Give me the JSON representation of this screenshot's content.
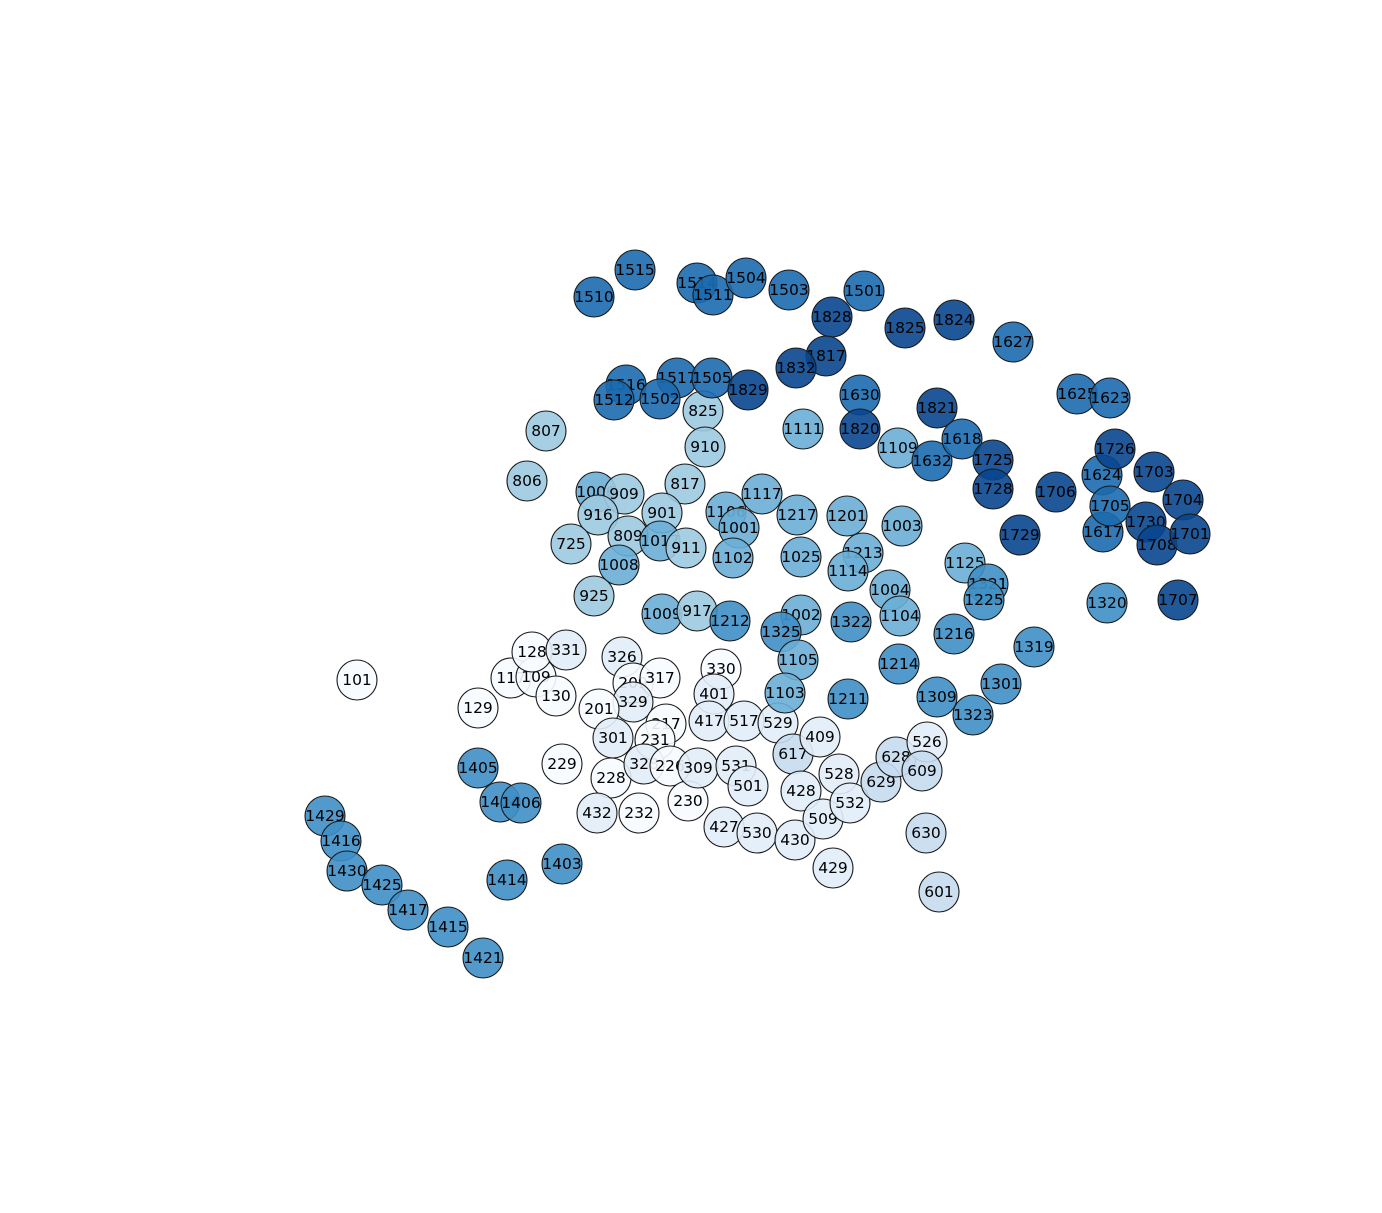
{
  "palette": [
    "#f7fbff",
    "#e1edf8",
    "#c6dcef",
    "#9dcae1",
    "#6aaed6",
    "#3f8fc5",
    "#1c6aaf",
    "#08468f"
  ],
  "nodes": [
    {
      "label": "101",
      "shade": 0
    },
    {
      "label": "117",
      "shade": 0
    },
    {
      "label": "109",
      "shade": 0
    },
    {
      "label": "128",
      "shade": 0
    },
    {
      "label": "129",
      "shade": 0
    },
    {
      "label": "130",
      "shade": 0
    },
    {
      "label": "331",
      "shade": 1
    },
    {
      "label": "326",
      "shade": 1
    },
    {
      "label": "209",
      "shade": 0
    },
    {
      "label": "317",
      "shade": 0
    },
    {
      "label": "329",
      "shade": 1
    },
    {
      "label": "201",
      "shade": 0
    },
    {
      "label": "301",
      "shade": 1
    },
    {
      "label": "217",
      "shade": 0
    },
    {
      "label": "231",
      "shade": 0
    },
    {
      "label": "229",
      "shade": 0
    },
    {
      "label": "228",
      "shade": 0
    },
    {
      "label": "328",
      "shade": 1
    },
    {
      "label": "226",
      "shade": 0
    },
    {
      "label": "232",
      "shade": 0
    },
    {
      "label": "230",
      "shade": 0
    },
    {
      "label": "432",
      "shade": 1
    },
    {
      "label": "330",
      "shade": 0
    },
    {
      "label": "401",
      "shade": 1
    },
    {
      "label": "417",
      "shade": 1
    },
    {
      "label": "517",
      "shade": 1
    },
    {
      "label": "309",
      "shade": 1
    },
    {
      "label": "531",
      "shade": 1
    },
    {
      "label": "501",
      "shade": 1
    },
    {
      "label": "427",
      "shade": 1
    },
    {
      "label": "530",
      "shade": 1
    },
    {
      "label": "430",
      "shade": 1
    },
    {
      "label": "529",
      "shade": 1
    },
    {
      "label": "617",
      "shade": 2
    },
    {
      "label": "409",
      "shade": 1
    },
    {
      "label": "428",
      "shade": 1
    },
    {
      "label": "509",
      "shade": 1
    },
    {
      "label": "528",
      "shade": 1
    },
    {
      "label": "532",
      "shade": 1
    },
    {
      "label": "429",
      "shade": 1
    },
    {
      "label": "629",
      "shade": 2
    },
    {
      "label": "628",
      "shade": 2
    },
    {
      "label": "526",
      "shade": 1
    },
    {
      "label": "609",
      "shade": 2
    },
    {
      "label": "630",
      "shade": 2
    },
    {
      "label": "601",
      "shade": 2
    },
    {
      "label": "807",
      "shade": 3
    },
    {
      "label": "806",
      "shade": 3
    },
    {
      "label": "825",
      "shade": 3
    },
    {
      "label": "910",
      "shade": 3
    },
    {
      "label": "817",
      "shade": 3
    },
    {
      "label": "1006",
      "shade": 4
    },
    {
      "label": "909",
      "shade": 3
    },
    {
      "label": "916",
      "shade": 3
    },
    {
      "label": "901",
      "shade": 3
    },
    {
      "label": "809",
      "shade": 3
    },
    {
      "label": "1017",
      "shade": 4
    },
    {
      "label": "911",
      "shade": 3
    },
    {
      "label": "725",
      "shade": 3
    },
    {
      "label": "1008",
      "shade": 4
    },
    {
      "label": "925",
      "shade": 3
    },
    {
      "label": "1009",
      "shade": 4
    },
    {
      "label": "917",
      "shade": 3
    },
    {
      "label": "1106",
      "shade": 4
    },
    {
      "label": "1001",
      "shade": 4
    },
    {
      "label": "1117",
      "shade": 4
    },
    {
      "label": "1102",
      "shade": 4
    },
    {
      "label": "1111",
      "shade": 4
    },
    {
      "label": "1217",
      "shade": 4
    },
    {
      "label": "1201",
      "shade": 4
    },
    {
      "label": "1025",
      "shade": 4
    },
    {
      "label": "1213",
      "shade": 4
    },
    {
      "label": "1114",
      "shade": 4
    },
    {
      "label": "1003",
      "shade": 4
    },
    {
      "label": "1109",
      "shade": 4
    },
    {
      "label": "1004",
      "shade": 4
    },
    {
      "label": "1104",
      "shade": 4
    },
    {
      "label": "1002",
      "shade": 4
    },
    {
      "label": "1212",
      "shade": 5
    },
    {
      "label": "1325",
      "shade": 5
    },
    {
      "label": "1322",
      "shade": 5
    },
    {
      "label": "1105",
      "shade": 4
    },
    {
      "label": "1103",
      "shade": 4
    },
    {
      "label": "1211",
      "shade": 5
    },
    {
      "label": "1214",
      "shade": 5
    },
    {
      "label": "1216",
      "shade": 5
    },
    {
      "label": "1125",
      "shade": 4
    },
    {
      "label": "1321",
      "shade": 5
    },
    {
      "label": "1225",
      "shade": 5
    },
    {
      "label": "1319",
      "shade": 5
    },
    {
      "label": "1309",
      "shade": 5
    },
    {
      "label": "1301",
      "shade": 5
    },
    {
      "label": "1323",
      "shade": 5
    },
    {
      "label": "1320",
      "shade": 5
    },
    {
      "label": "1405",
      "shade": 5
    },
    {
      "label": "1404",
      "shade": 5
    },
    {
      "label": "1406",
      "shade": 5
    },
    {
      "label": "1403",
      "shade": 5
    },
    {
      "label": "1414",
      "shade": 5
    },
    {
      "label": "1429",
      "shade": 5
    },
    {
      "label": "1416",
      "shade": 5
    },
    {
      "label": "1430",
      "shade": 5
    },
    {
      "label": "1425",
      "shade": 5
    },
    {
      "label": "1417",
      "shade": 5
    },
    {
      "label": "1415",
      "shade": 5
    },
    {
      "label": "1421",
      "shade": 5
    },
    {
      "label": "1510",
      "shade": 6
    },
    {
      "label": "1515",
      "shade": 6
    },
    {
      "label": "1514",
      "shade": 6
    },
    {
      "label": "1511",
      "shade": 6
    },
    {
      "label": "1504",
      "shade": 6
    },
    {
      "label": "1503",
      "shade": 6
    },
    {
      "label": "1501",
      "shade": 6
    },
    {
      "label": "1516",
      "shade": 6
    },
    {
      "label": "1512",
      "shade": 6
    },
    {
      "label": "1517",
      "shade": 6
    },
    {
      "label": "1505",
      "shade": 6
    },
    {
      "label": "1502",
      "shade": 6
    },
    {
      "label": "1630",
      "shade": 6
    },
    {
      "label": "1632",
      "shade": 6
    },
    {
      "label": "1618",
      "shade": 6
    },
    {
      "label": "1627",
      "shade": 6
    },
    {
      "label": "1625",
      "shade": 6
    },
    {
      "label": "1623",
      "shade": 6
    },
    {
      "label": "1624",
      "shade": 6
    },
    {
      "label": "1617",
      "shade": 6
    },
    {
      "label": "1725",
      "shade": 7
    },
    {
      "label": "1728",
      "shade": 7
    },
    {
      "label": "1706",
      "shade": 7
    },
    {
      "label": "1729",
      "shade": 7
    },
    {
      "label": "1726",
      "shade": 7
    },
    {
      "label": "1703",
      "shade": 7
    },
    {
      "label": "1705",
      "shade": 6
    },
    {
      "label": "1704",
      "shade": 7
    },
    {
      "label": "1730",
      "shade": 7
    },
    {
      "label": "1708",
      "shade": 7
    },
    {
      "label": "1701",
      "shade": 7
    },
    {
      "label": "1707",
      "shade": 7
    },
    {
      "label": "1828",
      "shade": 7
    },
    {
      "label": "1825",
      "shade": 7
    },
    {
      "label": "1824",
      "shade": 7
    },
    {
      "label": "1817",
      "shade": 7
    },
    {
      "label": "1832",
      "shade": 7
    },
    {
      "label": "1829",
      "shade": 7
    },
    {
      "label": "1821",
      "shade": 7
    },
    {
      "label": "1820",
      "shade": 7
    }
  ]
}
